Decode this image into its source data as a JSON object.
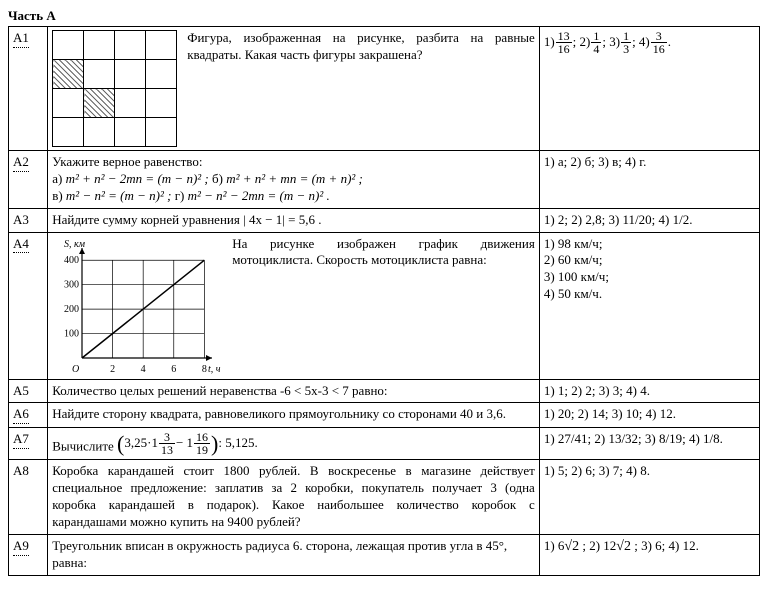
{
  "title": "Часть А",
  "a1": {
    "id": "А1",
    "text": "Фигура, изображенная на рисунке, разбита на равные квадраты. Какая часть фигуры закрашена?",
    "ans_prefix": [
      "1) ",
      "; 2) ",
      "; 3) ",
      "; 4) ",
      "."
    ],
    "fracs": [
      [
        "13",
        "16"
      ],
      [
        "1",
        "4"
      ],
      [
        "1",
        "3"
      ],
      [
        "3",
        "16"
      ]
    ],
    "grid": [
      [
        0,
        0,
        0,
        0
      ],
      [
        1,
        0,
        0,
        0
      ],
      [
        0,
        1,
        0,
        0
      ],
      [
        0,
        0,
        0,
        0
      ]
    ]
  },
  "a2": {
    "id": "А2",
    "text_lead": "Укажите верное равенство:",
    "opts": {
      "a": "m² + n² − 2mn = (m − n)² ;",
      "b": "m² + n² + mn = (m + n)² ;",
      "v": "m² − n² = (m − n)² ;",
      "g": "m² − n² − 2mn = (m − n)² ."
    },
    "labels": {
      "a": "а) ",
      "b": "б) ",
      "v": "в) ",
      "g": "г) "
    },
    "answers": "1) а; 2) б; 3) в; 4) г."
  },
  "a3": {
    "id": "А3",
    "text": "Найдите сумму корней уравнения | 4x − 1| = 5,6 .",
    "answers": "1) 2; 2) 2,8; 3) 11/20; 4) 1/2."
  },
  "a4": {
    "id": "А4",
    "text": "На рисунке изображен график движения мотоциклиста. Скорость мотоциклиста равна:",
    "answers": [
      "1) 98 км/ч;",
      "2) 60 км/ч;",
      "3) 100 км/ч;",
      "4) 50 км/ч."
    ],
    "chart": {
      "ylabel": "S, км",
      "xlabel": "t, ч",
      "yticks": [
        100,
        200,
        300,
        400
      ],
      "xticks": [
        2,
        4,
        6,
        8
      ],
      "xlim": [
        0,
        8.5
      ],
      "ylim": [
        0,
        450
      ],
      "line": [
        [
          0,
          0
        ],
        [
          8,
          400
        ]
      ],
      "grid_color": "#000",
      "axis_color": "#000",
      "bg": "#fff"
    }
  },
  "a5": {
    "id": "А5",
    "text": "Количество целых решений неравенства -6 < 5x-3 < 7 равно:",
    "answers": "1) 1; 2) 2; 3) 3; 4) 4."
  },
  "a6": {
    "id": "А6",
    "text": "Найдите сторону квадрата, равновеликого прямоугольнику со сторонами 40 и 3,6.",
    "answers": "1) 20; 2) 14; 3) 10; 4) 12."
  },
  "a7": {
    "id": "А7",
    "lead": "Вычислите ",
    "expr": {
      "a_int": "3,25",
      "a_mult": "·1",
      "f1": [
        "3",
        "13"
      ],
      "minus": " − 1",
      "f2": [
        "16",
        "19"
      ],
      "div": " : 5,125."
    },
    "answers": "1) 27/41; 2) 13/32; 3) 8/19; 4) 1/8."
  },
  "a8": {
    "id": "А8",
    "text": "Коробка карандашей стоит 1800 рублей. В воскресенье в магазине действует специальное предложение: заплатив за 2 коробки, покупатель получает 3 (одна коробка карандашей в подарок). Какое наибольшее количество коробок с карандашами можно купить на 9400 рублей?",
    "answers": "1) 5; 2) 6; 3) 7; 4) 8."
  },
  "a9": {
    "id": "А9",
    "text": "Треугольник вписан в окружность радиуса 6. сторона, лежащая против угла в 45°, равна:",
    "answers_parts": [
      "1) 6",
      "; 2) 12",
      "; 3) 6; 4) 12."
    ],
    "sqrt": "√2"
  }
}
